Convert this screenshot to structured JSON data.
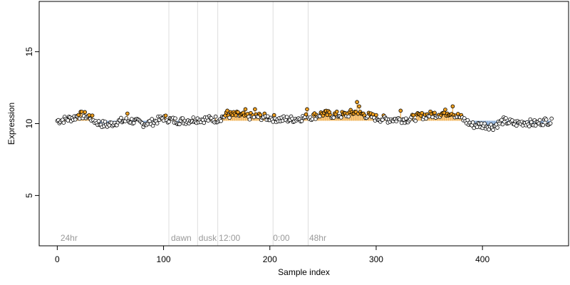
{
  "chart_data": {
    "type": "scatter",
    "title": "",
    "xlabel": "Sample index",
    "ylabel": "Expression",
    "xlim": [
      -17,
      481
    ],
    "ylim": [
      1.5,
      18.5
    ],
    "xticks": [
      0,
      100,
      200,
      300,
      400
    ],
    "yticks": [
      5,
      10,
      15
    ],
    "baseline": 10.2,
    "colors": {
      "above_fill": "#f0a020",
      "above_stem": "#f0b050",
      "below_stem": "#7fa6d6",
      "point_fill_default": "#ffffff",
      "point_stroke": "#000000",
      "divider": "#dddddd",
      "segment_label": "#999999"
    },
    "segments": [
      {
        "label": "24hr",
        "x": 3
      },
      {
        "label": "dawn",
        "x": 107
      },
      {
        "label": "dusk",
        "x": 133
      },
      {
        "label": "12:00",
        "x": 152
      },
      {
        "label": "0:00",
        "x": 203
      },
      {
        "label": "48hr",
        "x": 237
      }
    ],
    "dividers": [
      105,
      132,
      151,
      203,
      236
    ],
    "anchors": [
      [
        0,
        10.2
      ],
      [
        8,
        10.3
      ],
      [
        15,
        10.4
      ],
      [
        22,
        10.6
      ],
      [
        30,
        10.5
      ],
      [
        35,
        10.2
      ],
      [
        40,
        10.0
      ],
      [
        48,
        9.9
      ],
      [
        55,
        10.1
      ],
      [
        62,
        10.2
      ],
      [
        70,
        10.2
      ],
      [
        80,
        10.0
      ],
      [
        90,
        10.1
      ],
      [
        100,
        10.4
      ],
      [
        110,
        10.2
      ],
      [
        120,
        10.2
      ],
      [
        130,
        10.3
      ],
      [
        140,
        10.3
      ],
      [
        150,
        10.3
      ],
      [
        160,
        10.6
      ],
      [
        170,
        10.6
      ],
      [
        180,
        10.5
      ],
      [
        190,
        10.5
      ],
      [
        200,
        10.4
      ],
      [
        210,
        10.3
      ],
      [
        220,
        10.3
      ],
      [
        230,
        10.4
      ],
      [
        240,
        10.5
      ],
      [
        250,
        10.7
      ],
      [
        260,
        10.6
      ],
      [
        270,
        10.6
      ],
      [
        280,
        10.8
      ],
      [
        290,
        10.6
      ],
      [
        300,
        10.4
      ],
      [
        310,
        10.3
      ],
      [
        320,
        10.3
      ],
      [
        330,
        10.3
      ],
      [
        340,
        10.5
      ],
      [
        350,
        10.6
      ],
      [
        360,
        10.7
      ],
      [
        370,
        10.8
      ],
      [
        380,
        10.4
      ],
      [
        390,
        9.9
      ],
      [
        400,
        9.9
      ],
      [
        410,
        9.8
      ],
      [
        420,
        10.2
      ],
      [
        430,
        10.0
      ],
      [
        440,
        10.1
      ],
      [
        450,
        10.0
      ],
      [
        460,
        10.2
      ],
      [
        465,
        10.1
      ]
    ],
    "point_count": 466,
    "noise_amplitude": 0.25,
    "spikes": [
      [
        20,
        10.6
      ],
      [
        26,
        10.8
      ],
      [
        66,
        10.7
      ],
      [
        160,
        10.9
      ],
      [
        177,
        11.0
      ],
      [
        186,
        11.0
      ],
      [
        235,
        11.0
      ],
      [
        282,
        11.5
      ],
      [
        284,
        11.2
      ],
      [
        372,
        11.2
      ],
      [
        323,
        10.9
      ]
    ]
  }
}
